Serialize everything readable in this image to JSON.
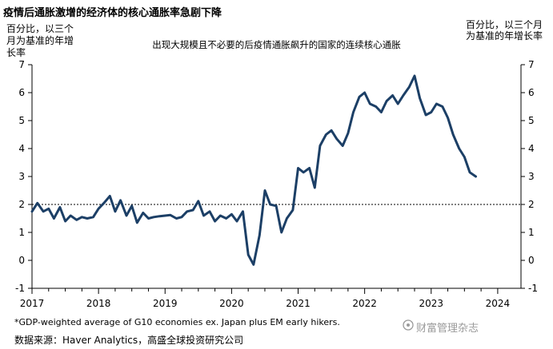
{
  "title": "疫情后通胀激增的经济体的核心通胀率急剧下降",
  "source": "数据来源：Haver Analytics，高盛全球投资研究公司",
  "watermark_text": "财富管理杂志",
  "chart_data": {
    "type": "line",
    "title": "出现大规模且不必要的后疫情通胀飙升的国家的连续核心通胀",
    "ylabel_left": "百分比，以三个月为基准的年增长率",
    "ylabel_right": "百分比，以三个月为基准的年增长率",
    "footnote": "*GDP-weighted average of G10 economies ex. Japan plus EM early hikers.",
    "xlim": [
      2017,
      2024.35
    ],
    "ylim": [
      -1,
      7
    ],
    "xticks": [
      2017,
      2018,
      2019,
      2020,
      2021,
      2022,
      2023,
      2024
    ],
    "yticks": [
      -1,
      0,
      1,
      2,
      3,
      4,
      5,
      6,
      7
    ],
    "reference_line": 2,
    "grid": false,
    "line_color": "#1c3f66",
    "series": [
      {
        "x": [
          2017.0,
          2017.08,
          2017.17,
          2017.25,
          2017.33,
          2017.42,
          2017.5,
          2017.58,
          2017.67,
          2017.75,
          2017.83,
          2017.92,
          2018.0,
          2018.08,
          2018.17,
          2018.25,
          2018.33,
          2018.42,
          2018.5,
          2018.58,
          2018.67,
          2018.75,
          2018.83,
          2018.92,
          2019.0,
          2019.08,
          2019.17,
          2019.25,
          2019.33,
          2019.42,
          2019.5,
          2019.58,
          2019.67,
          2019.75,
          2019.83,
          2019.92,
          2020.0,
          2020.08,
          2020.17,
          2020.25,
          2020.33,
          2020.42,
          2020.5,
          2020.58,
          2020.67,
          2020.75,
          2020.83,
          2020.92,
          2021.0,
          2021.08,
          2021.17,
          2021.25,
          2021.33,
          2021.42,
          2021.5,
          2021.58,
          2021.67,
          2021.75,
          2021.83,
          2021.92,
          2022.0,
          2022.08,
          2022.17,
          2022.25,
          2022.33,
          2022.42,
          2022.5,
          2022.58,
          2022.67,
          2022.75,
          2022.83,
          2022.92,
          2023.0,
          2023.08,
          2023.17,
          2023.25,
          2023.33,
          2023.42,
          2023.5,
          2023.58,
          2023.67
        ],
        "values": [
          1.75,
          2.05,
          1.75,
          1.85,
          1.5,
          1.9,
          1.4,
          1.6,
          1.45,
          1.55,
          1.5,
          1.55,
          1.85,
          2.05,
          2.3,
          1.75,
          2.15,
          1.6,
          1.95,
          1.35,
          1.7,
          1.5,
          1.55,
          1.58,
          1.6,
          1.62,
          1.5,
          1.55,
          1.75,
          1.8,
          2.12,
          1.6,
          1.75,
          1.4,
          1.6,
          1.5,
          1.65,
          1.4,
          1.75,
          0.2,
          -0.15,
          0.9,
          2.5,
          2.0,
          1.95,
          1.0,
          1.5,
          1.8,
          3.3,
          3.15,
          3.3,
          2.6,
          4.1,
          4.5,
          4.65,
          4.35,
          4.1,
          4.55,
          5.3,
          5.85,
          6.0,
          5.6,
          5.5,
          5.3,
          5.7,
          5.9,
          5.6,
          5.9,
          6.2,
          6.6,
          5.8,
          5.2,
          5.3,
          5.6,
          5.5,
          5.1,
          4.5,
          4.0,
          3.7,
          3.15,
          3.0
        ]
      }
    ]
  }
}
